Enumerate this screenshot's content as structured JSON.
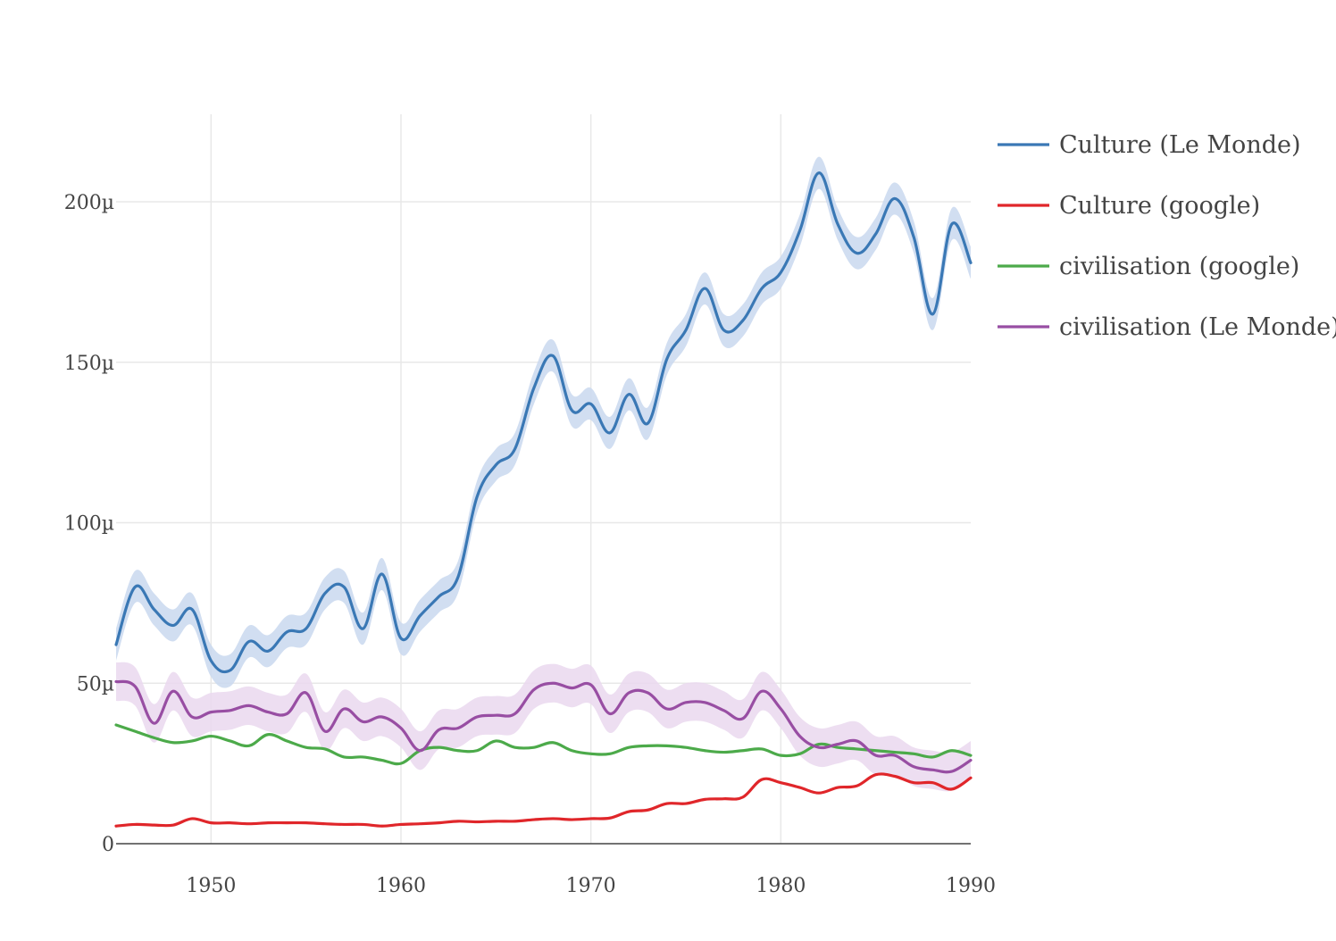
{
  "chart_data": {
    "type": "line",
    "title": "",
    "xlabel": "",
    "ylabel": "",
    "xlim": [
      1945,
      1990
    ],
    "ylim": [
      0,
      225
    ],
    "x_ticks": [
      1950,
      1960,
      1970,
      1980,
      1990
    ],
    "x_tick_labels": [
      "1950",
      "1960",
      "1970",
      "1980",
      "1990"
    ],
    "y_ticks": [
      0,
      50,
      100,
      150,
      200
    ],
    "y_tick_labels": [
      "0",
      "50µ",
      "100µ",
      "150µ",
      "200µ"
    ],
    "grid": true,
    "legend_position": "top-right",
    "x": [
      1945,
      1946,
      1947,
      1948,
      1949,
      1950,
      1951,
      1952,
      1953,
      1954,
      1955,
      1956,
      1957,
      1958,
      1959,
      1960,
      1961,
      1962,
      1963,
      1964,
      1965,
      1966,
      1967,
      1968,
      1969,
      1970,
      1971,
      1972,
      1973,
      1974,
      1975,
      1976,
      1977,
      1978,
      1979,
      1980,
      1981,
      1982,
      1983,
      1984,
      1985,
      1986,
      1987,
      1988,
      1989,
      1990
    ],
    "series": [
      {
        "name": "Culture (Le Monde)",
        "color": "#3a78b5",
        "band_color": "#c9d8ee",
        "band_halfwidth": 5,
        "values": [
          62,
          80,
          73,
          68,
          73,
          57,
          54,
          63,
          60,
          66,
          67,
          78,
          80,
          67,
          84,
          64,
          71,
          77,
          83,
          108,
          118,
          123,
          142,
          152,
          135,
          137,
          128,
          140,
          131,
          151,
          160,
          173,
          160,
          163,
          173,
          178,
          191,
          209,
          193,
          184,
          190,
          201,
          189,
          165,
          193,
          181
        ]
      },
      {
        "name": "Culture (google)",
        "color": "#e0262a",
        "values": [
          5.5,
          6,
          5.8,
          5.8,
          7.8,
          6.5,
          6.5,
          6.2,
          6.5,
          6.5,
          6.5,
          6.2,
          6,
          6,
          5.5,
          6,
          6.2,
          6.5,
          7,
          6.8,
          7,
          7,
          7.5,
          7.8,
          7.5,
          7.8,
          8,
          10,
          10.5,
          12.5,
          12.5,
          13.8,
          14,
          14.5,
          20,
          19,
          17.5,
          15.8,
          17.5,
          18,
          21.5,
          21,
          19,
          19,
          17,
          20.5
        ]
      },
      {
        "name": "civilisation (google)",
        "color": "#4caa4a",
        "values": [
          37,
          35,
          33,
          31.5,
          32,
          33.5,
          32,
          30.5,
          34,
          32,
          30,
          29.5,
          27,
          27,
          26,
          25,
          29,
          30,
          29,
          29,
          32,
          30,
          30,
          31.5,
          29,
          28,
          28,
          30,
          30.5,
          30.5,
          30,
          29,
          28.5,
          29,
          29.5,
          27.5,
          28,
          31,
          30,
          29.5,
          29,
          28.5,
          28,
          27,
          29,
          27.5
        ]
      },
      {
        "name": "civilisation (Le Monde)",
        "color": "#984ea3",
        "band_color": "#ead8ee",
        "band_halfwidth": 6,
        "values": [
          50.5,
          49,
          37.5,
          47.5,
          39.5,
          41,
          41.5,
          43,
          41,
          40.5,
          47,
          35,
          42,
          38,
          39.5,
          36,
          29,
          35.5,
          36,
          39.5,
          40,
          40.5,
          48,
          50,
          48.5,
          49.5,
          40.5,
          47,
          47,
          42,
          44,
          44,
          41.5,
          39,
          47.5,
          42,
          33.5,
          30,
          31,
          32,
          27.5,
          27.5,
          24,
          23,
          22.5,
          26
        ]
      }
    ]
  }
}
